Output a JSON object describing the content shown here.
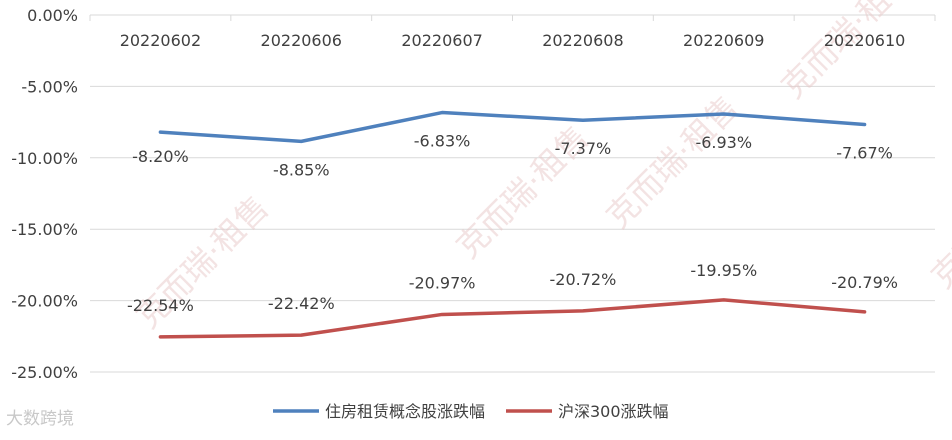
{
  "chart_data": {
    "type": "line",
    "categories": [
      "20220602",
      "20220606",
      "20220607",
      "20220608",
      "20220609",
      "20220610"
    ],
    "ylim": [
      -25,
      0
    ],
    "yticks": [
      0,
      -5,
      -10,
      -15,
      -20,
      -25
    ],
    "ytick_labels": [
      "0.00%",
      "-5.00%",
      "-10.00%",
      "-15.00%",
      "-20.00%",
      "-25.00%"
    ],
    "grid": true,
    "legend_position": "bottom",
    "series": [
      {
        "name": "住房租赁概念股涨跌幅",
        "color": "#4f81bd",
        "values": [
          -8.2,
          -8.85,
          -6.83,
          -7.37,
          -6.93,
          -7.67
        ],
        "labels": [
          "-8.20%",
          "-8.85%",
          "-6.83%",
          "-7.37%",
          "-6.93%",
          "-7.67%"
        ]
      },
      {
        "name": "沪深300涨跌幅",
        "color": "#c0504d",
        "values": [
          -22.54,
          -22.42,
          -20.97,
          -20.72,
          -19.95,
          -20.79
        ],
        "labels": [
          "-22.54%",
          "-22.42%",
          "-20.97%",
          "-20.72%",
          "-19.95%",
          "-20.79%"
        ]
      }
    ]
  },
  "watermark": {
    "text": "克而瑞·租售",
    "brand": "大数跨境"
  }
}
